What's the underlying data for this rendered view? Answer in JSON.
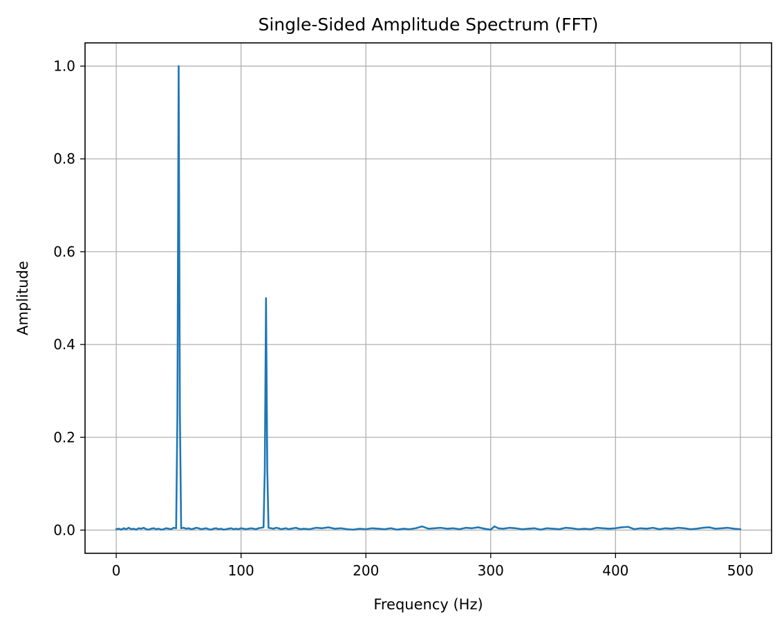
{
  "chart_data": {
    "type": "line",
    "title": "Single-Sided Amplitude Spectrum (FFT)",
    "xlabel": "Frequency (Hz)",
    "ylabel": "Amplitude",
    "xlim": [
      -25,
      525
    ],
    "ylim": [
      -0.05,
      1.05
    ],
    "xticks": [
      0,
      100,
      200,
      300,
      400,
      500
    ],
    "xtick_labels": [
      "0",
      "100",
      "200",
      "300",
      "400",
      "500"
    ],
    "yticks": [
      0.0,
      0.2,
      0.4,
      0.6,
      0.8,
      1.0
    ],
    "ytick_labels": [
      "0.0",
      "0.2",
      "0.4",
      "0.6",
      "0.8",
      "1.0"
    ],
    "grid": true,
    "line_color": "#1f77b4",
    "grid_color": "#b0b0b0",
    "series": [
      {
        "x": [
          0,
          2,
          4,
          6,
          8,
          10,
          12,
          14,
          16,
          18,
          20,
          22,
          24,
          26,
          28,
          30,
          32,
          34,
          36,
          38,
          40,
          42,
          44,
          46,
          48,
          49,
          50,
          51,
          52,
          54,
          56,
          58,
          60,
          62,
          64,
          66,
          68,
          70,
          72,
          74,
          76,
          78,
          80,
          82,
          84,
          86,
          88,
          90,
          92,
          94,
          96,
          98,
          100,
          102,
          104,
          106,
          108,
          110,
          112,
          114,
          116,
          118,
          119,
          120,
          121,
          122,
          124,
          126,
          128,
          130,
          132,
          134,
          136,
          138,
          140,
          142,
          144,
          146,
          148,
          150,
          155,
          160,
          165,
          170,
          175,
          180,
          185,
          190,
          195,
          200,
          205,
          210,
          215,
          220,
          225,
          230,
          235,
          240,
          245,
          250,
          255,
          260,
          265,
          270,
          275,
          280,
          285,
          290,
          295,
          300,
          303,
          306,
          310,
          315,
          320,
          325,
          330,
          335,
          340,
          345,
          350,
          355,
          360,
          365,
          370,
          375,
          380,
          385,
          390,
          395,
          400,
          405,
          410,
          415,
          420,
          425,
          430,
          435,
          440,
          445,
          450,
          455,
          460,
          465,
          470,
          475,
          480,
          485,
          490,
          495,
          500
        ],
        "values": [
          0.002,
          0.003,
          0.001,
          0.004,
          0.002,
          0.005,
          0.002,
          0.003,
          0.001,
          0.004,
          0.003,
          0.005,
          0.002,
          0.001,
          0.003,
          0.004,
          0.002,
          0.003,
          0.001,
          0.002,
          0.004,
          0.003,
          0.002,
          0.005,
          0.004,
          0.25,
          1.0,
          0.25,
          0.004,
          0.005,
          0.003,
          0.004,
          0.002,
          0.003,
          0.005,
          0.004,
          0.002,
          0.003,
          0.004,
          0.002,
          0.001,
          0.003,
          0.004,
          0.002,
          0.003,
          0.001,
          0.002,
          0.003,
          0.004,
          0.002,
          0.003,
          0.002,
          0.004,
          0.003,
          0.002,
          0.003,
          0.004,
          0.003,
          0.002,
          0.004,
          0.005,
          0.006,
          0.13,
          0.5,
          0.13,
          0.005,
          0.004,
          0.003,
          0.005,
          0.004,
          0.002,
          0.003,
          0.004,
          0.002,
          0.003,
          0.004,
          0.005,
          0.003,
          0.002,
          0.003,
          0.002,
          0.005,
          0.004,
          0.006,
          0.003,
          0.004,
          0.002,
          0.001,
          0.003,
          0.002,
          0.004,
          0.003,
          0.002,
          0.004,
          0.001,
          0.003,
          0.002,
          0.004,
          0.008,
          0.003,
          0.004,
          0.005,
          0.003,
          0.004,
          0.002,
          0.005,
          0.004,
          0.006,
          0.003,
          0.001,
          0.008,
          0.004,
          0.003,
          0.005,
          0.004,
          0.002,
          0.003,
          0.004,
          0.001,
          0.004,
          0.003,
          0.002,
          0.005,
          0.004,
          0.002,
          0.003,
          0.002,
          0.005,
          0.004,
          0.003,
          0.004,
          0.006,
          0.007,
          0.002,
          0.004,
          0.003,
          0.005,
          0.002,
          0.004,
          0.003,
          0.005,
          0.004,
          0.002,
          0.003,
          0.005,
          0.006,
          0.003,
          0.004,
          0.005,
          0.003,
          0.002
        ]
      }
    ]
  }
}
